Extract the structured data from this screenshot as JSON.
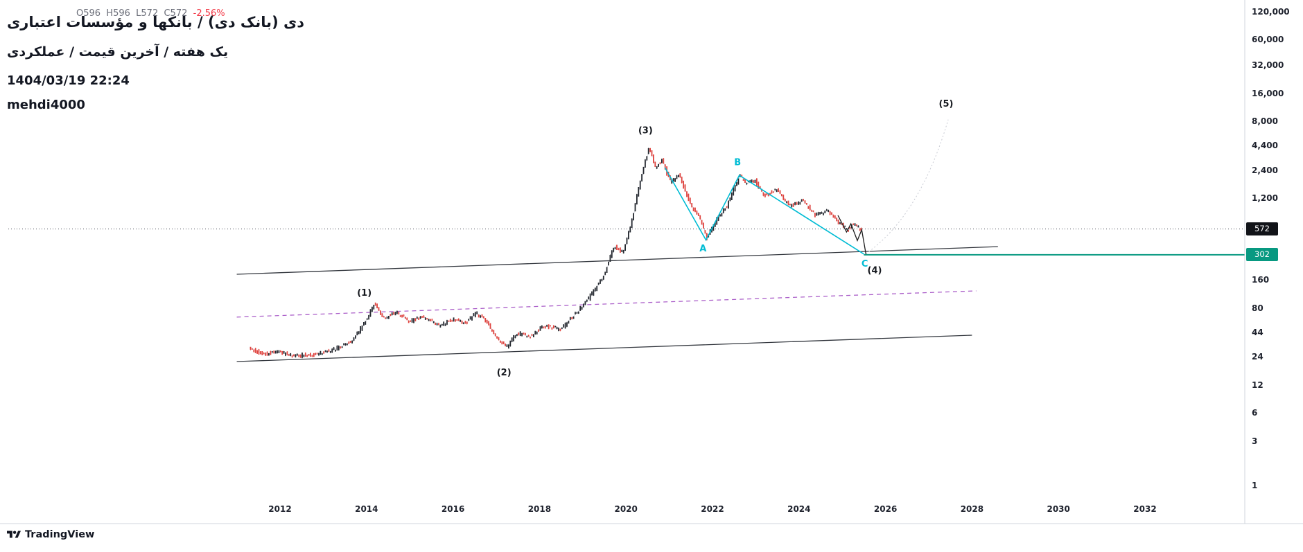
{
  "header": {
    "title": "دی (بانک دی) / بانکها و مؤسسات اعتباری",
    "legend_ohlc": "O596  H596  L572  C572",
    "legend_change": "-2.56%",
    "subtitle": "یک هفته / آخرین قیمت / عملکردی",
    "datetime": "1404/03/19 22:24",
    "username": "mehdi4000"
  },
  "footer": {
    "brand": "TradingView"
  },
  "price_axis": {
    "labels": [
      {
        "text": "120,000",
        "value": 120000
      },
      {
        "text": "60,000",
        "value": 60000
      },
      {
        "text": "32,000",
        "value": 32000
      },
      {
        "text": "16,000",
        "value": 16000
      },
      {
        "text": "8,000",
        "value": 8000
      },
      {
        "text": "4,400",
        "value": 4400
      },
      {
        "text": "2,400",
        "value": 2400
      },
      {
        "text": "1,200",
        "value": 1200
      },
      {
        "text": "160",
        "value": 160
      },
      {
        "text": "80",
        "value": 80
      },
      {
        "text": "44",
        "value": 44
      },
      {
        "text": "24",
        "value": 24
      },
      {
        "text": "12",
        "value": 12
      },
      {
        "text": "6",
        "value": 6
      },
      {
        "text": "3",
        "value": 3
      },
      {
        "text": "1",
        "value": 1
      }
    ],
    "last_price_badge": {
      "text": "572",
      "value": 572,
      "bg": "#111318"
    },
    "level_badge": {
      "text": "302",
      "value": 302,
      "bg": "#089981"
    }
  },
  "time_axis": {
    "labels": [
      {
        "text": "2012",
        "t": 2012
      },
      {
        "text": "2014",
        "t": 2014
      },
      {
        "text": "2016",
        "t": 2016
      },
      {
        "text": "2018",
        "t": 2018
      },
      {
        "text": "2020",
        "t": 2020
      },
      {
        "text": "2022",
        "t": 2022
      },
      {
        "text": "2024",
        "t": 2024
      },
      {
        "text": "2026",
        "t": 2026
      },
      {
        "text": "2028",
        "t": 2028
      },
      {
        "text": "2030",
        "t": 2030
      },
      {
        "text": "2032",
        "t": 2032
      }
    ]
  },
  "chart_data": {
    "type": "candlestick",
    "yscale": "log",
    "ylim": [
      1,
      160000
    ],
    "x_ticks": [
      2012,
      2014,
      2016,
      2018,
      2020,
      2022,
      2024,
      2026,
      2028,
      2030,
      2032
    ],
    "y_ticks": [
      120000,
      60000,
      32000,
      16000,
      8000,
      4400,
      2400,
      1200,
      160,
      80,
      44,
      24,
      12,
      6,
      3,
      1
    ],
    "last_price": 572,
    "change_percent": -2.56,
    "price_path": [
      [
        2011.3,
        31
      ],
      [
        2011.6,
        26
      ],
      [
        2012.0,
        27
      ],
      [
        2012.4,
        25
      ],
      [
        2012.9,
        26
      ],
      [
        2013.3,
        30
      ],
      [
        2013.7,
        36
      ],
      [
        2014.0,
        60
      ],
      [
        2014.2,
        90
      ],
      [
        2014.45,
        62
      ],
      [
        2014.7,
        74
      ],
      [
        2015.0,
        58
      ],
      [
        2015.3,
        66
      ],
      [
        2015.7,
        52
      ],
      [
        2016.0,
        62
      ],
      [
        2016.3,
        55
      ],
      [
        2016.55,
        72
      ],
      [
        2016.8,
        58
      ],
      [
        2017.0,
        40
      ],
      [
        2017.25,
        31
      ],
      [
        2017.5,
        44
      ],
      [
        2017.8,
        40
      ],
      [
        2018.1,
        52
      ],
      [
        2018.5,
        48
      ],
      [
        2018.9,
        75
      ],
      [
        2019.2,
        110
      ],
      [
        2019.5,
        180
      ],
      [
        2019.75,
        380
      ],
      [
        2019.95,
        320
      ],
      [
        2020.15,
        700
      ],
      [
        2020.35,
        1900
      ],
      [
        2020.55,
        4300
      ],
      [
        2020.7,
        2600
      ],
      [
        2020.85,
        3100
      ],
      [
        2021.05,
        1800
      ],
      [
        2021.25,
        2200
      ],
      [
        2021.5,
        1050
      ],
      [
        2021.7,
        800
      ],
      [
        2021.88,
        450
      ],
      [
        2022.1,
        700
      ],
      [
        2022.35,
        1000
      ],
      [
        2022.5,
        1500
      ],
      [
        2022.65,
        2150
      ],
      [
        2022.8,
        1750
      ],
      [
        2023.0,
        1900
      ],
      [
        2023.2,
        1300
      ],
      [
        2023.5,
        1500
      ],
      [
        2023.8,
        1000
      ],
      [
        2024.1,
        1150
      ],
      [
        2024.4,
        800
      ],
      [
        2024.7,
        900
      ],
      [
        2024.95,
        650
      ],
      [
        2025.15,
        560
      ],
      [
        2025.25,
        640
      ],
      [
        2025.45,
        572
      ]
    ],
    "support_line": {
      "level": 302,
      "from_t": 2025.5,
      "color": "#089981"
    },
    "channel_lines": [
      {
        "name": "upper",
        "points": [
          [
            2011.0,
            187
          ],
          [
            2028.6,
            370
          ]
        ],
        "color": "#33373e",
        "dash": null
      },
      {
        "name": "lower",
        "points": [
          [
            2011.0,
            21.7
          ],
          [
            2028.0,
            41.5
          ]
        ],
        "color": "#33373e",
        "dash": null
      },
      {
        "name": "median",
        "points": [
          [
            2011.0,
            65
          ],
          [
            2028.1,
            124
          ]
        ],
        "color": "#ab5fc9",
        "dash": "6,5"
      }
    ],
    "abc_zigzag": {
      "color": "#00bcd4",
      "points": [
        [
          2020.9,
          2600
        ],
        [
          2021.85,
          435
        ],
        [
          2022.62,
          2150
        ],
        [
          2025.5,
          308
        ]
      ]
    },
    "ending_zigzag": {
      "color": "#1b1b1b",
      "points": [
        [
          2024.9,
          800
        ],
        [
          2025.1,
          530
        ],
        [
          2025.2,
          650
        ],
        [
          2025.35,
          430
        ],
        [
          2025.45,
          560
        ],
        [
          2025.55,
          305
        ]
      ]
    },
    "projection": {
      "from": [
        2025.55,
        310
      ],
      "ctrl": [
        2026.8,
        800
      ],
      "to": [
        2027.45,
        8500
      ],
      "color": "#c8cbd3"
    },
    "elliott_labels": [
      {
        "text": "(1)",
        "t": 2013.95,
        "p": 118,
        "color": "#15181e"
      },
      {
        "text": "(2)",
        "t": 2017.18,
        "p": 16.5,
        "color": "#15181e"
      },
      {
        "text": "(3)",
        "t": 2020.45,
        "p": 6500,
        "color": "#15181e"
      },
      {
        "text": "(4)",
        "t": 2025.75,
        "p": 205,
        "color": "#15181e"
      },
      {
        "text": "(5)",
        "t": 2027.4,
        "p": 12500,
        "color": "#15181e"
      },
      {
        "text": "A",
        "t": 2021.78,
        "p": 352,
        "color": "#00bcd4"
      },
      {
        "text": "B",
        "t": 2022.58,
        "p": 2950,
        "color": "#00bcd4"
      },
      {
        "text": "C",
        "t": 2025.52,
        "p": 242,
        "color": "#00bcd4"
      }
    ],
    "candle_colors": {
      "up": "#23272e",
      "down": "#e0433e"
    }
  }
}
